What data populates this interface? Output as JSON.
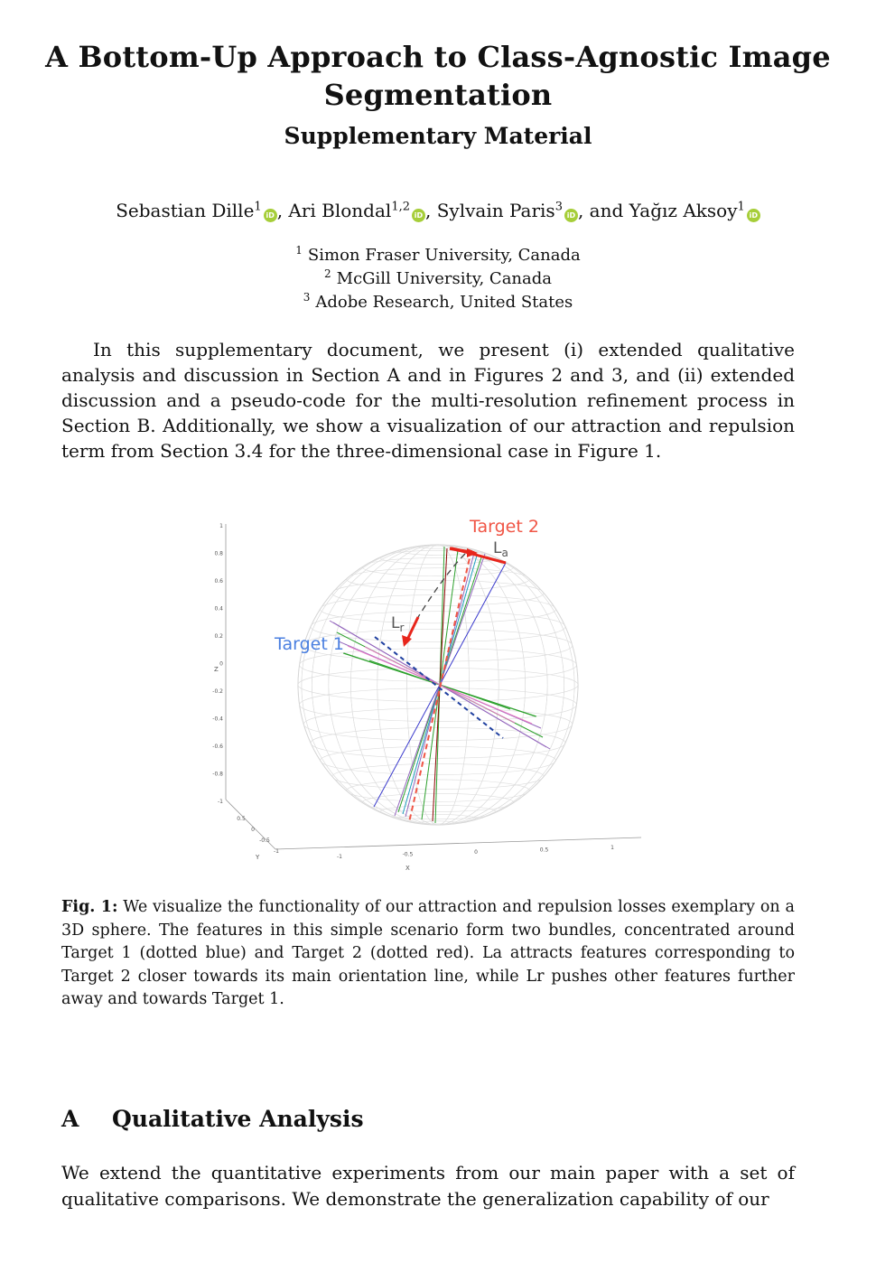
{
  "header": {
    "title": "A Bottom-Up Approach to Class-Agnostic Image Segmentation",
    "subtitle": "Supplementary Material"
  },
  "authors": [
    {
      "name": "Sebastian Dille",
      "sup": "1"
    },
    {
      "name": "Ari Blondal",
      "sup": "1,2"
    },
    {
      "name": "Sylvain Paris",
      "sup": "3"
    },
    {
      "name": "Yağız Aksoy",
      "sup": "1"
    }
  ],
  "authors_joiners": [
    ", ",
    ", ",
    ", and "
  ],
  "affiliations": [
    {
      "sup": "1",
      "name": "Simon Fraser University, Canada"
    },
    {
      "sup": "2",
      "name": "McGill University, Canada"
    },
    {
      "sup": "3",
      "name": "Adobe Research, United States"
    }
  ],
  "intro": "In this supplementary document, we present (i) extended qualitative analysis and discussion in Section A and in Figures 2 and 3, and (ii) extended discussion and a pseudo-code for the multi-resolution refinement process in Section B. Additionally, we show a visualization of our attraction and repulsion term from Section 3.4 for the three-dimensional case in Figure 1.",
  "figure": {
    "label_target1": "Target 1",
    "label_target2": "Target 2",
    "label_la": "L",
    "label_la_sub": "a",
    "label_lr": "L",
    "label_lr_sub": "r",
    "z_ticks": [
      "1",
      "0.8",
      "0.6",
      "0.4",
      "0.2",
      "0",
      "-0.2",
      "-0.4",
      "-0.6",
      "-0.8",
      "-1"
    ],
    "z_axis": "Z",
    "x_ticks": [
      "-1",
      "-0.5",
      "0",
      "0.5",
      "1"
    ],
    "x_axis": "X",
    "y_ticks": [
      "0.5",
      "0",
      "-0.5",
      "-1"
    ],
    "y_axis": "Y",
    "colors": {
      "target1": "#4a7fe0",
      "target2": "#f05545",
      "accent_red": "#e8251b"
    }
  },
  "caption": {
    "label": "Fig. 1:",
    "text": "We visualize the functionality of our attraction and repulsion losses exemplary on a 3D sphere. The features in this simple scenario form two bundles, concentrated around Target 1 (dotted blue) and Target 2 (dotted red). La attracts features corresponding to Target 2 closer towards its main orientation line, while Lr pushes other features further away and towards Target 1."
  },
  "section": {
    "number": "A",
    "title": "Qualitative Analysis",
    "body": "We extend the quantitative experiments from our main paper with a set of qualitative comparisons. We demonstrate the generalization capability of our"
  }
}
